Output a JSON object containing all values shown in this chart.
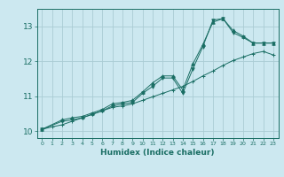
{
  "title": "",
  "xlabel": "Humidex (Indice chaleur)",
  "ylabel": "",
  "bg_color": "#cce8f0",
  "grid_color": "#aaccd4",
  "line_color": "#1a6e64",
  "xlim": [
    -0.5,
    23.5
  ],
  "ylim": [
    9.8,
    13.5
  ],
  "xticks": [
    0,
    1,
    2,
    3,
    4,
    5,
    6,
    7,
    8,
    9,
    10,
    11,
    12,
    13,
    14,
    15,
    16,
    17,
    18,
    19,
    20,
    21,
    22,
    23
  ],
  "yticks": [
    10,
    11,
    12,
    13
  ],
  "line1": {
    "x": [
      0,
      1,
      2,
      3,
      4,
      5,
      6,
      7,
      8,
      9,
      10,
      11,
      12,
      13,
      14,
      15,
      16,
      17,
      18,
      19,
      20,
      21,
      22,
      23
    ],
    "y": [
      10.05,
      10.12,
      10.18,
      10.28,
      10.38,
      10.48,
      10.58,
      10.68,
      10.72,
      10.78,
      10.88,
      10.98,
      11.08,
      11.18,
      11.28,
      11.42,
      11.58,
      11.72,
      11.88,
      12.02,
      12.12,
      12.22,
      12.28,
      12.18
    ]
  },
  "line2": {
    "x": [
      0,
      2,
      3,
      4,
      5,
      6,
      7,
      8,
      9,
      10,
      11,
      12,
      13,
      14,
      15,
      16,
      17,
      18,
      19,
      20,
      21,
      22,
      23
    ],
    "y": [
      10.05,
      10.28,
      10.32,
      10.38,
      10.48,
      10.58,
      10.72,
      10.78,
      10.82,
      11.08,
      11.28,
      11.52,
      11.52,
      11.08,
      11.78,
      12.42,
      13.18,
      13.22,
      12.82,
      12.68,
      12.52,
      12.52,
      12.52
    ]
  },
  "line3": {
    "x": [
      0,
      2,
      3,
      4,
      5,
      6,
      7,
      8,
      9,
      10,
      11,
      12,
      13,
      14,
      15,
      16,
      17,
      18,
      19,
      20,
      21,
      22,
      23
    ],
    "y": [
      10.05,
      10.32,
      10.38,
      10.42,
      10.52,
      10.62,
      10.78,
      10.82,
      10.88,
      11.12,
      11.38,
      11.58,
      11.58,
      11.18,
      11.92,
      12.48,
      13.12,
      13.22,
      12.88,
      12.72,
      12.52,
      12.52,
      12.52
    ]
  }
}
